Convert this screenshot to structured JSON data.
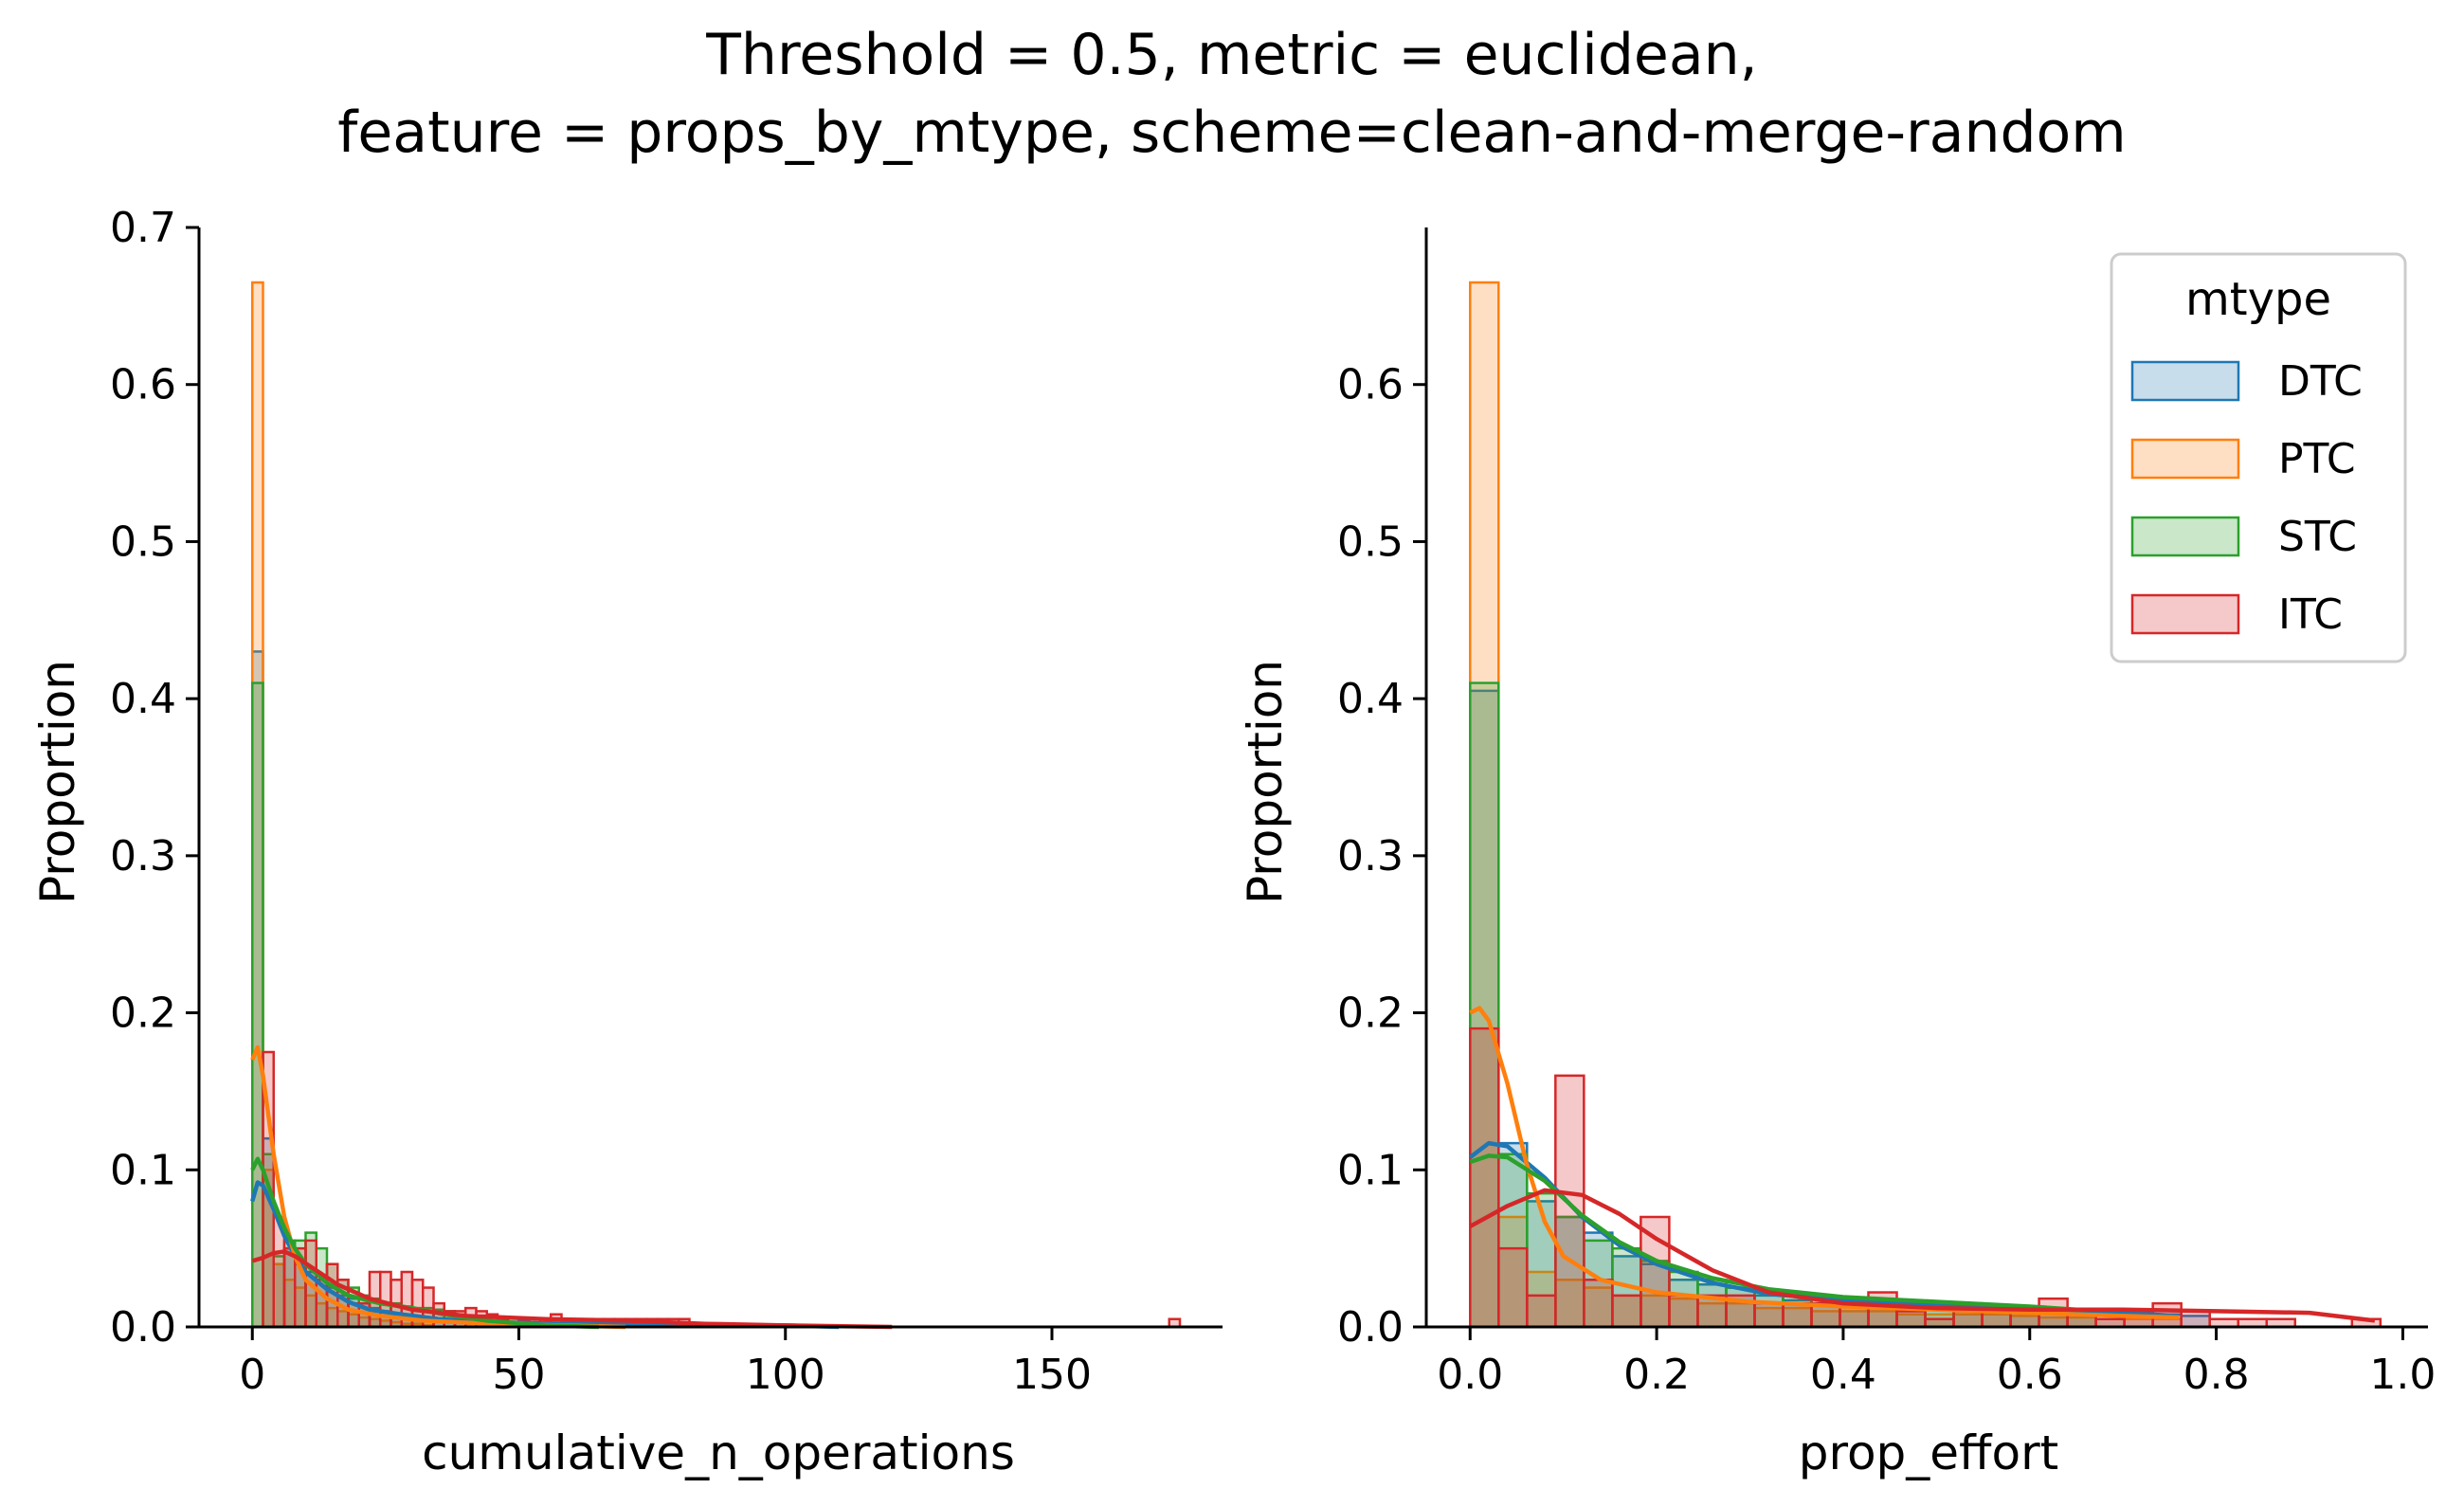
{
  "figure": {
    "title_line1": "Threshold = 0.5, metric = euclidean,",
    "title_line2": "feature = props_by_mtype, scheme=clean-and-merge-random"
  },
  "legend": {
    "title": "mtype",
    "entries": [
      {
        "label": "DTC",
        "color": "#1f77b4"
      },
      {
        "label": "PTC",
        "color": "#ff7f0e"
      },
      {
        "label": "STC",
        "color": "#2ca02c"
      },
      {
        "label": "ITC",
        "color": "#d62728"
      }
    ]
  },
  "chart_data": [
    {
      "type": "histogram",
      "xlabel": "cumulative_n_operations",
      "ylabel": "Proportion",
      "xlim": [
        -10,
        182
      ],
      "ylim": [
        0,
        0.7
      ],
      "xticks": [
        0,
        50,
        100,
        150
      ],
      "yticks": [
        0.0,
        0.1,
        0.2,
        0.3,
        0.4,
        0.5,
        0.6,
        0.7
      ],
      "bin_width": 2,
      "series": [
        {
          "name": "DTC",
          "color": "#1f77b4",
          "bins_start": 0,
          "values": [
            0.43,
            0.12,
            0.04,
            0.05,
            0.04,
            0.035,
            0.03,
            0.025,
            0.02,
            0.018,
            0.015,
            0.012,
            0.01,
            0.008,
            0.006,
            0.005,
            0.004,
            0.004,
            0.003,
            0.003,
            0.002,
            0.005,
            0.004,
            0.002,
            0.001
          ],
          "kde": [
            [
              0,
              0.08
            ],
            [
              1,
              0.092
            ],
            [
              2,
              0.09
            ],
            [
              4,
              0.075
            ],
            [
              6,
              0.058
            ],
            [
              8,
              0.045
            ],
            [
              10,
              0.035
            ],
            [
              14,
              0.024
            ],
            [
              18,
              0.016
            ],
            [
              22,
              0.011
            ],
            [
              28,
              0.008
            ],
            [
              35,
              0.005
            ],
            [
              45,
              0.003
            ],
            [
              60,
              0.002
            ],
            [
              100,
              0.001
            ],
            [
              110,
              0.0
            ]
          ]
        },
        {
          "name": "PTC",
          "color": "#ff7f0e",
          "bins_start": 0,
          "values": [
            0.665,
            0.1,
            0.04,
            0.03,
            0.025,
            0.02,
            0.015,
            0.012,
            0.01,
            0.008,
            0.006,
            0.005,
            0.004,
            0.003,
            0.002,
            0.002,
            0.001
          ],
          "kde": [
            [
              0,
              0.17
            ],
            [
              1,
              0.178
            ],
            [
              2,
              0.16
            ],
            [
              4,
              0.11
            ],
            [
              6,
              0.07
            ],
            [
              8,
              0.045
            ],
            [
              10,
              0.03
            ],
            [
              14,
              0.018
            ],
            [
              18,
              0.011
            ],
            [
              24,
              0.007
            ],
            [
              32,
              0.004
            ],
            [
              45,
              0.002
            ],
            [
              70,
              0.0
            ]
          ]
        },
        {
          "name": "STC",
          "color": "#2ca02c",
          "bins_start": 0,
          "values": [
            0.41,
            0.11,
            0.045,
            0.055,
            0.055,
            0.06,
            0.05,
            0.04,
            0.03,
            0.025,
            0.02,
            0.018,
            0.015,
            0.015,
            0.013,
            0.012,
            0.012,
            0.011,
            0.01,
            0.008,
            0.005,
            0.003
          ],
          "kde": [
            [
              0,
              0.1
            ],
            [
              1,
              0.107
            ],
            [
              2,
              0.1
            ],
            [
              4,
              0.08
            ],
            [
              6,
              0.063
            ],
            [
              8,
              0.05
            ],
            [
              10,
              0.04
            ],
            [
              14,
              0.028
            ],
            [
              18,
              0.02
            ],
            [
              24,
              0.015
            ],
            [
              30,
              0.012
            ],
            [
              36,
              0.008
            ],
            [
              44,
              0.004
            ],
            [
              55,
              0.001
            ],
            [
              65,
              0.0
            ]
          ]
        },
        {
          "name": "ITC",
          "color": "#d62728",
          "bins_start": 2,
          "values": [
            0.175,
            0.07,
            0.05,
            0.05,
            0.055,
            0.03,
            0.04,
            0.03,
            0.015,
            0.015,
            0.035,
            0.035,
            0.03,
            0.035,
            0.03,
            0.025,
            0.015,
            0.01,
            0.01,
            0.012,
            0.01,
            0.008,
            0.005,
            0.006,
            0.004,
            0.0,
            0.005,
            0.008,
            0.003,
            0.005,
            0.005,
            0.005,
            0.005,
            0.005,
            0.005,
            0.005,
            0.005,
            0.005,
            0.005,
            0.005
          ],
          "extra_bins": [
            {
              "x": 172,
              "value": 0.005
            }
          ],
          "kde": [
            [
              0,
              0.042
            ],
            [
              2,
              0.044
            ],
            [
              4,
              0.047
            ],
            [
              6,
              0.048
            ],
            [
              8,
              0.045
            ],
            [
              12,
              0.036
            ],
            [
              16,
              0.027
            ],
            [
              22,
              0.018
            ],
            [
              30,
              0.011
            ],
            [
              40,
              0.007
            ],
            [
              55,
              0.005
            ],
            [
              70,
              0.004
            ],
            [
              85,
              0.002
            ],
            [
              100,
              0.001
            ],
            [
              120,
              0.0
            ]
          ]
        }
      ]
    },
    {
      "type": "histogram",
      "xlabel": "prop_effort",
      "ylabel": "Proportion",
      "xlim": [
        -0.047,
        1.027
      ],
      "ylim": [
        0,
        0.7
      ],
      "xticks": [
        0.0,
        0.2,
        0.4,
        0.6,
        0.8,
        1.0
      ],
      "yticks": [
        0.0,
        0.1,
        0.2,
        0.3,
        0.4,
        0.5,
        0.6
      ],
      "bin_width": 0.0305,
      "series": [
        {
          "name": "DTC",
          "color": "#1f77b4",
          "bins_start": 0,
          "values": [
            0.405,
            0.117,
            0.08,
            0.07,
            0.06,
            0.045,
            0.04,
            0.03,
            0.027,
            0.025,
            0.02,
            0.017,
            0.015,
            0.015,
            0.013,
            0.012,
            0.012,
            0.015,
            0.012,
            0.01,
            0.01,
            0.008,
            0.008,
            0.01,
            0.008,
            0.007
          ],
          "kde": [
            [
              0,
              0.108
            ],
            [
              0.02,
              0.117
            ],
            [
              0.04,
              0.115
            ],
            [
              0.08,
              0.095
            ],
            [
              0.12,
              0.07
            ],
            [
              0.16,
              0.052
            ],
            [
              0.2,
              0.04
            ],
            [
              0.26,
              0.028
            ],
            [
              0.32,
              0.021
            ],
            [
              0.4,
              0.017
            ],
            [
              0.5,
              0.014
            ],
            [
              0.6,
              0.011
            ],
            [
              0.7,
              0.009
            ],
            [
              0.76,
              0.007
            ]
          ]
        },
        {
          "name": "PTC",
          "color": "#ff7f0e",
          "bins_start": 0,
          "values": [
            0.665,
            0.07,
            0.035,
            0.03,
            0.025,
            0.02,
            0.02,
            0.018,
            0.015,
            0.015,
            0.012,
            0.012,
            0.01,
            0.01,
            0.01,
            0.008,
            0.008,
            0.008,
            0.008,
            0.007,
            0.006,
            0.006,
            0.005,
            0.005,
            0.005
          ],
          "kde": [
            [
              0,
              0.2
            ],
            [
              0.01,
              0.203
            ],
            [
              0.02,
              0.195
            ],
            [
              0.04,
              0.155
            ],
            [
              0.06,
              0.105
            ],
            [
              0.08,
              0.067
            ],
            [
              0.1,
              0.045
            ],
            [
              0.14,
              0.03
            ],
            [
              0.2,
              0.022
            ],
            [
              0.3,
              0.016
            ],
            [
              0.4,
              0.013
            ],
            [
              0.5,
              0.011
            ],
            [
              0.6,
              0.009
            ],
            [
              0.7,
              0.007
            ],
            [
              0.76,
              0.006
            ]
          ]
        },
        {
          "name": "STC",
          "color": "#2ca02c",
          "bins_start": 0,
          "values": [
            0.41,
            0.11,
            0.085,
            0.07,
            0.055,
            0.05,
            0.042,
            0.035,
            0.03,
            0.025,
            0.022,
            0.02,
            0.018,
            0.018,
            0.015,
            0.015,
            0.014,
            0.013,
            0.012,
            0.012,
            0.01,
            0.01
          ],
          "kde": [
            [
              0,
              0.105
            ],
            [
              0.02,
              0.109
            ],
            [
              0.04,
              0.108
            ],
            [
              0.08,
              0.093
            ],
            [
              0.12,
              0.071
            ],
            [
              0.16,
              0.054
            ],
            [
              0.2,
              0.042
            ],
            [
              0.26,
              0.031
            ],
            [
              0.32,
              0.024
            ],
            [
              0.4,
              0.019
            ],
            [
              0.5,
              0.016
            ],
            [
              0.6,
              0.013
            ],
            [
              0.65,
              0.011
            ]
          ]
        },
        {
          "name": "ITC",
          "color": "#d62728",
          "bins_start": 0,
          "values": [
            0.19,
            0.05,
            0.02,
            0.16,
            0.03,
            0.02,
            0.07,
            0.02,
            0.02,
            0.02,
            0.015,
            0.015,
            0.015,
            0.015,
            0.022,
            0.01,
            0.005,
            0.01,
            0.01,
            0.01,
            0.018,
            0.01,
            0.005,
            0.01,
            0.015,
            0.01,
            0.005,
            0.005,
            0.005,
            0.0,
            0.0,
            0.005
          ],
          "kde": [
            [
              0,
              0.064
            ],
            [
              0.04,
              0.077
            ],
            [
              0.08,
              0.087
            ],
            [
              0.12,
              0.084
            ],
            [
              0.16,
              0.072
            ],
            [
              0.2,
              0.056
            ],
            [
              0.26,
              0.036
            ],
            [
              0.32,
              0.022
            ],
            [
              0.4,
              0.015
            ],
            [
              0.5,
              0.012
            ],
            [
              0.6,
              0.011
            ],
            [
              0.7,
              0.011
            ],
            [
              0.8,
              0.01
            ],
            [
              0.9,
              0.009
            ],
            [
              0.97,
              0.004
            ]
          ]
        }
      ]
    }
  ]
}
